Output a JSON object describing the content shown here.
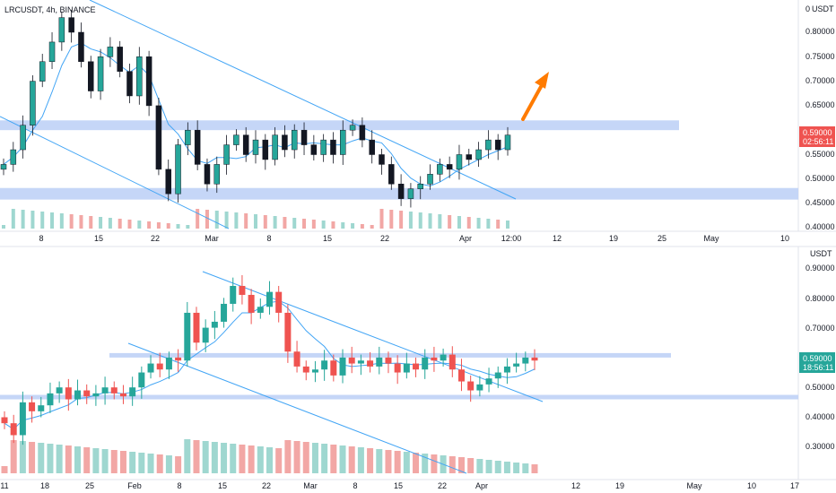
{
  "colors": {
    "up": "#26a69a",
    "down": "#ef5350",
    "vol_up": "#9fd7d0",
    "vol_down": "#f2a7a5",
    "zone": "#c5d6f7",
    "trendline": "#42a5f5",
    "ma": "#42a5f5",
    "arrow": "#ff7b00",
    "red_tag": "#ef5350",
    "green_tag": "#26a69a",
    "axis_text": "#131722"
  },
  "top": {
    "symbol_title": "LRCUSDT, 4h, BINANCE",
    "unit_label": "USDT",
    "y_ticks": [
      "0.80000",
      "0.75000",
      "0.70000",
      "0.65000",
      "0.55000",
      "0.50000",
      "0.45000",
      "0.40000"
    ],
    "price_tag": "0.59000",
    "countdown": "02:56:11",
    "x_ticks": [
      "8",
      "15",
      "22",
      "Mar",
      "8",
      "15",
      "22",
      "Apr",
      "12:00",
      "12",
      "19",
      "25",
      "May",
      "10"
    ]
  },
  "bottom": {
    "unit_label": "USDT",
    "y_ticks": [
      "0.90000",
      "0.80000",
      "0.70000",
      "0.50000",
      "0.40000",
      "0.30000"
    ],
    "price_tag": "0.59000",
    "countdown": "18:56:11",
    "x_ticks": [
      "11",
      "18",
      "25",
      "Feb",
      "8",
      "15",
      "22",
      "Mar",
      "8",
      "15",
      "22",
      "Apr",
      "12",
      "19",
      "May",
      "10",
      "17"
    ]
  },
  "chart_data": [
    {
      "type": "candlestick",
      "timeframe": "4h",
      "symbol": "LRCUSDT",
      "exchange": "BINANCE",
      "ylim": [
        0.4,
        0.8
      ],
      "support_zone": [
        0.46,
        0.48
      ],
      "resistance_zone": [
        0.6,
        0.62
      ],
      "close": [
        0.53,
        0.56,
        0.61,
        0.7,
        0.74,
        0.78,
        0.83,
        0.8,
        0.74,
        0.68,
        0.75,
        0.77,
        0.72,
        0.67,
        0.75,
        0.65,
        0.52,
        0.47,
        0.57,
        0.6,
        0.53,
        0.49,
        0.53,
        0.57,
        0.59,
        0.55,
        0.58,
        0.54,
        0.59,
        0.56,
        0.6,
        0.57,
        0.55,
        0.58,
        0.55,
        0.6,
        0.61,
        0.58,
        0.55,
        0.53,
        0.49,
        0.46,
        0.48,
        0.49,
        0.51,
        0.53,
        0.52,
        0.55,
        0.54,
        0.56,
        0.58,
        0.56,
        0.59
      ]
    },
    {
      "type": "candlestick",
      "timeframe": "1D",
      "ylim": [
        0.25,
        0.9
      ],
      "support_zone": [
        0.46,
        0.475
      ],
      "resistance_zone": [
        0.6,
        0.615
      ],
      "close": [
        0.38,
        0.34,
        0.45,
        0.42,
        0.44,
        0.48,
        0.5,
        0.46,
        0.49,
        0.47,
        0.48,
        0.5,
        0.48,
        0.47,
        0.5,
        0.55,
        0.58,
        0.56,
        0.6,
        0.59,
        0.75,
        0.65,
        0.7,
        0.72,
        0.78,
        0.84,
        0.81,
        0.75,
        0.77,
        0.82,
        0.75,
        0.62,
        0.57,
        0.55,
        0.56,
        0.59,
        0.54,
        0.6,
        0.58,
        0.59,
        0.57,
        0.6,
        0.58,
        0.55,
        0.58,
        0.56,
        0.6,
        0.59,
        0.61,
        0.56,
        0.52,
        0.49,
        0.51,
        0.53,
        0.55,
        0.57,
        0.58,
        0.6,
        0.59
      ]
    }
  ]
}
